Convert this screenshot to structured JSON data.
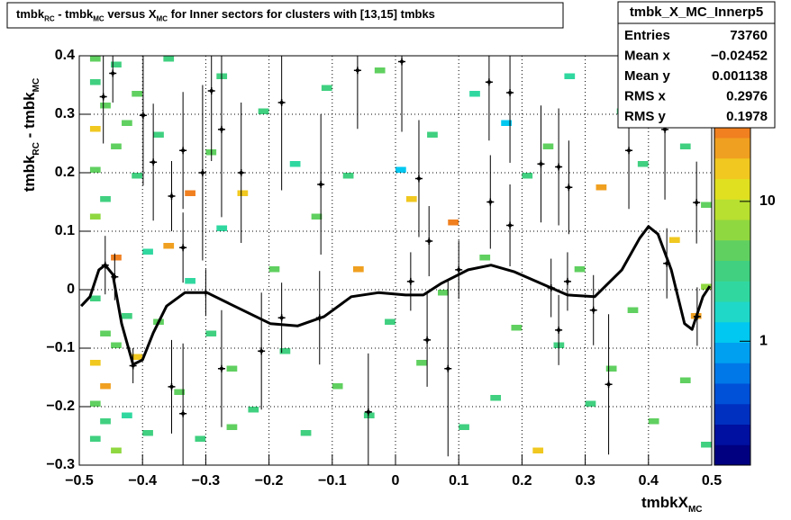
{
  "chart_data": {
    "type": "heatmap",
    "title": [
      "tmbk",
      "RC",
      " - tmbk",
      "MC",
      " versus X",
      "MC",
      " for Inner sectors for clusters with [13,15] tmbks"
    ],
    "x_label": [
      "tmbkX",
      "MC"
    ],
    "y_label": [
      "tmbk",
      "RC",
      " - tmbk",
      "MC"
    ],
    "xlim": [
      -0.5,
      0.5
    ],
    "ylim": [
      -0.3,
      0.4
    ],
    "xticks": [
      {
        "value": -0.5,
        "label": "−0.5"
      },
      {
        "value": -0.4,
        "label": "−0.4"
      },
      {
        "value": -0.3,
        "label": "−0.3"
      },
      {
        "value": -0.2,
        "label": "−0.2"
      },
      {
        "value": -0.1,
        "label": "−0.1"
      },
      0,
      0.1,
      0.2,
      0.3,
      0.4,
      0.5
    ],
    "yticks": [
      {
        "value": -0.3,
        "label": "−0.3"
      },
      {
        "value": -0.2,
        "label": "−0.2"
      },
      {
        "value": -0.1,
        "label": "−0.1"
      },
      0,
      0.1,
      0.2,
      0.3,
      0.4
    ],
    "grid": true,
    "xbin": 0.0167,
    "ybin": 0.01,
    "z_log": true,
    "zlim": [
      0.13,
      110
    ],
    "zticks": [
      1,
      10
    ],
    "palette": [
      "#000080",
      "#0010a0",
      "#0030c0",
      "#0050d8",
      "#0078e8",
      "#00a0f0",
      "#00c8f0",
      "#20d8c8",
      "#30d8a0",
      "#40d080",
      "#60d060",
      "#90d840",
      "#b8e030",
      "#e0e020",
      "#f0c820",
      "#f0a020",
      "#f08020",
      "#f06020",
      "#e84020",
      "#e02010"
    ],
    "cell_x": [
      -0.483,
      -0.483,
      -0.483,
      -0.483,
      -0.483,
      -0.483,
      -0.483,
      -0.483,
      -0.483,
      -0.467,
      -0.467,
      -0.467,
      -0.467,
      -0.467,
      -0.45,
      -0.45,
      -0.45,
      -0.45,
      -0.45,
      -0.433,
      -0.433,
      -0.433,
      -0.417,
      -0.417,
      -0.417,
      -0.4,
      -0.4,
      -0.383,
      -0.383,
      -0.367,
      -0.367,
      -0.35,
      -0.333,
      -0.333,
      -0.317,
      -0.3,
      -0.3,
      -0.283,
      -0.283,
      -0.267,
      -0.25,
      -0.233,
      -0.217,
      -0.2,
      -0.183,
      -0.167,
      -0.15,
      -0.133,
      -0.117,
      -0.1,
      -0.083,
      -0.067,
      -0.05,
      -0.033,
      -0.017,
      0,
      0.017,
      0.033,
      0.05,
      0.067,
      0.083,
      0.1,
      0.117,
      0.133,
      0.15,
      0.167,
      0.183,
      0.2,
      0.217,
      0.233,
      0.25,
      0.267,
      0.283,
      0.3,
      0.317,
      0.333,
      0.35,
      0.367,
      0.383,
      0.4,
      0.417,
      0.433,
      0.45,
      0.45,
      0.467,
      0.467,
      0.483,
      0.483,
      0.483,
      -0.267
    ],
    "cell_y": [
      0.39,
      0.35,
      0.27,
      0.2,
      0.12,
      -0.02,
      -0.13,
      -0.2,
      -0.26,
      0.31,
      0.15,
      -0.08,
      -0.17,
      -0.23,
      0.38,
      0.24,
      0.05,
      -0.1,
      -0.28,
      0.28,
      -0.05,
      -0.22,
      0.33,
      0.19,
      -0.12,
      0.06,
      -0.25,
      0.26,
      -0.06,
      0.07,
      0.39,
      -0.18,
      0.16,
      0.01,
      -0.26,
      0.23,
      -0.08,
      0.36,
      0.1,
      -0.14,
      0.16,
      -0.21,
      0.3,
      0.03,
      -0.11,
      0.21,
      -0.25,
      0.12,
      0.34,
      -0.17,
      0.19,
      0.03,
      -0.22,
      0.37,
      -0.06,
      0.2,
      0.15,
      -0.13,
      0.26,
      -0.01,
      0.11,
      -0.24,
      0.33,
      0.05,
      -0.19,
      0.28,
      -0.07,
      0.19,
      -0.28,
      0.24,
      -0.1,
      0.36,
      0.03,
      -0.2,
      0.17,
      -0.14,
      0.3,
      -0.04,
      0.21,
      -0.23,
      0.38,
      0.08,
      -0.16,
      0.24,
      0.33,
      -0.05,
      0.14,
      -0.27,
      0,
      -0.24
    ],
    "cell_z": [
      5,
      3,
      20,
      4,
      6,
      3,
      15,
      4,
      3,
      4,
      3,
      5,
      25,
      3,
      3,
      5,
      30,
      4,
      6,
      4,
      3,
      2,
      4,
      3,
      20,
      2,
      3,
      3,
      4,
      25,
      3,
      4,
      30,
      2,
      3,
      4,
      3,
      3,
      2,
      4,
      20,
      3,
      3,
      4,
      3,
      2,
      3,
      5,
      3,
      4,
      3,
      25,
      3,
      4,
      3,
      1,
      20,
      4,
      3,
      5,
      30,
      3,
      2,
      4,
      3,
      1,
      4,
      3,
      20,
      5,
      3,
      2,
      4,
      3,
      25,
      4,
      3,
      5,
      3,
      4,
      3,
      20,
      4,
      3,
      5,
      25,
      4,
      3,
      6,
      4
    ],
    "prof_x": [
      -0.462,
      -0.447,
      -0.459,
      -0.444,
      -0.415,
      -0.399,
      -0.383,
      -0.354,
      -0.354,
      -0.336,
      -0.336,
      -0.336,
      -0.305,
      -0.3,
      -0.291,
      -0.275,
      -0.275,
      -0.244,
      -0.212,
      -0.18,
      -0.18,
      -0.12,
      -0.118,
      -0.06,
      -0.043,
      0.01,
      0.024,
      0.037,
      0.05,
      0.053,
      0.083,
      0.1,
      0.148,
      0.15,
      0.181,
      0.181,
      0.23,
      0.246,
      0.258,
      0.258,
      0.272,
      0.274,
      0.313,
      0.337,
      0.369,
      0.426,
      0.429,
      0.476,
      0.477
    ],
    "prof_y": [
      0.33,
      0.37,
      0.042,
      0.022,
      -0.13,
      0.298,
      0.218,
      0.16,
      -0.166,
      0.238,
      0.072,
      -0.212,
      0.2,
      -0.005,
      0.34,
      0.274,
      -0.135,
      0.2,
      -0.105,
      0.32,
      -0.048,
      -0.048,
      0.18,
      0.375,
      -0.209,
      0.39,
      0.014,
      0.19,
      -0.086,
      0.083,
      -0.135,
      0.034,
      0.355,
      0.15,
      0.337,
      0.11,
      0.215,
      0.003,
      0.21,
      -0.069,
      0.014,
      0.175,
      -0.035,
      -0.162,
      0.238,
      0.274,
      0.045,
      0.149,
      -0.046
    ],
    "prof_err": [
      0.08,
      0.05,
      0.05,
      0.04,
      0.03,
      0.12,
      0.1,
      0.06,
      0.08,
      0.1,
      0.06,
      0.12,
      0.15,
      0.04,
      0.12,
      0.15,
      0.1,
      0.12,
      0.1,
      0.15,
      0.06,
      0.08,
      0.12,
      0.1,
      0.1,
      0.12,
      0.05,
      0.1,
      0.08,
      0.06,
      0.15,
      0.05,
      0.1,
      0.08,
      0.12,
      0.07,
      0.1,
      0.05,
      0.1,
      0.06,
      0.05,
      0.08,
      0.06,
      0.12,
      0.1,
      0.12,
      0.06,
      0.07,
      0.05
    ],
    "fit": {
      "x": [
        -0.497,
        -0.483,
        -0.469,
        -0.459,
        -0.447,
        -0.433,
        -0.415,
        -0.4,
        -0.383,
        -0.362,
        -0.333,
        -0.298,
        -0.255,
        -0.198,
        -0.155,
        -0.113,
        -0.07,
        -0.027,
        0.016,
        0.044,
        0.073,
        0.115,
        0.151,
        0.187,
        0.229,
        0.272,
        0.315,
        0.358,
        0.386,
        0.4,
        0.415,
        0.436,
        0.457,
        0.469,
        0.486,
        0.497
      ],
      "y": [
        -0.028,
        -0.012,
        0.034,
        0.042,
        0.026,
        -0.058,
        -0.128,
        -0.12,
        -0.074,
        -0.028,
        -0.005,
        -0.005,
        -0.028,
        -0.058,
        -0.062,
        -0.046,
        -0.012,
        -0.005,
        -0.009,
        -0.009,
        0.011,
        0.034,
        0.042,
        0.031,
        0.011,
        -0.009,
        -0.012,
        0.034,
        0.088,
        0.108,
        0.095,
        0.034,
        -0.058,
        -0.068,
        -0.012,
        0.006
      ]
    },
    "stats": {
      "title": "tmbk_X_MC_Innerp5",
      "rows": [
        [
          "Entries",
          "73760"
        ],
        [
          "Mean x",
          "−0.02452"
        ],
        [
          "Mean y",
          "0.001138"
        ],
        [
          "RMS x",
          "0.2976"
        ],
        [
          "RMS y",
          "0.1978"
        ]
      ]
    }
  }
}
